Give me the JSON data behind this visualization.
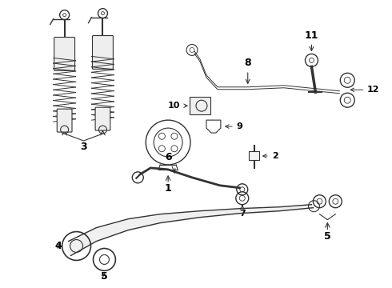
{
  "bg_color": "#ffffff",
  "lc": "#333333",
  "figsize": [
    4.9,
    3.6
  ],
  "dpi": 100,
  "xlim": [
    0,
    490
  ],
  "ylim": [
    0,
    360
  ]
}
